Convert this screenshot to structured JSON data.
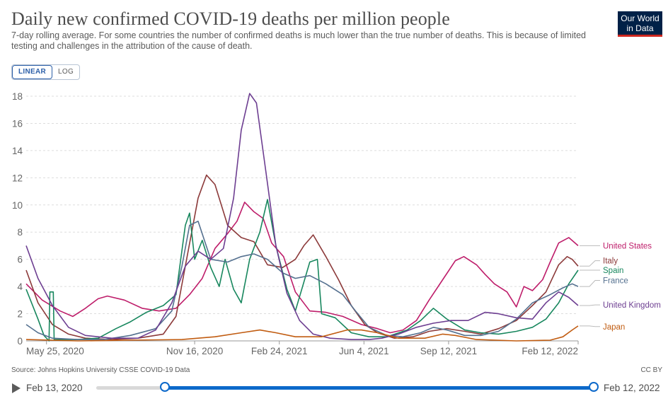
{
  "header": {
    "title": "Daily new confirmed COVID-19 deaths per million people",
    "subtitle": "7-day rolling average. For some countries the number of confirmed deaths is much lower than the true number of deaths. This is because of limited testing and challenges in the attribution of the cause of death.",
    "logo_line1": "Our World",
    "logo_line2": "in Data"
  },
  "controls": {
    "linear_label": "LINEAR",
    "log_label": "LOG"
  },
  "footer": {
    "source": "Source: Johns Hopkins University CSSE COVID-19 Data",
    "license": "CC BY"
  },
  "timeline": {
    "start_label": "Feb 13, 2020",
    "end_label": "Feb 12, 2022",
    "selected_start": 0.138,
    "selected_end": 1.0
  },
  "chart_data": {
    "type": "line",
    "x_type": "date",
    "xlim": [
      "2020-05-01",
      "2022-02-12"
    ],
    "ylim": [
      0,
      18
    ],
    "yticks": [
      0,
      2,
      4,
      6,
      8,
      10,
      12,
      14,
      16,
      18
    ],
    "xticks": [
      {
        "date": "2020-05-25",
        "label": "May 25, 2020"
      },
      {
        "date": "2020-11-16",
        "label": "Nov 16, 2020"
      },
      {
        "date": "2021-02-24",
        "label": "Feb 24, 2021"
      },
      {
        "date": "2021-06-04",
        "label": "Jun 4, 2021"
      },
      {
        "date": "2021-09-12",
        "label": "Sep 12, 2021"
      },
      {
        "date": "2022-02-12",
        "label": "Feb 12, 2022"
      }
    ],
    "grid": "horizontal-dashed",
    "legend": "right-end-labels",
    "series": [
      {
        "name": "United States",
        "color": "#be1d6a",
        "points": [
          [
            "2020-05-01",
            4.2
          ],
          [
            "2020-05-20",
            3.0
          ],
          [
            "2020-06-10",
            2.2
          ],
          [
            "2020-06-25",
            1.8
          ],
          [
            "2020-07-10",
            2.4
          ],
          [
            "2020-07-25",
            3.1
          ],
          [
            "2020-08-05",
            3.3
          ],
          [
            "2020-08-25",
            3.0
          ],
          [
            "2020-09-15",
            2.4
          ],
          [
            "2020-10-05",
            2.2
          ],
          [
            "2020-10-25",
            2.4
          ],
          [
            "2020-11-10",
            3.4
          ],
          [
            "2020-11-25",
            4.6
          ],
          [
            "2020-12-10",
            6.8
          ],
          [
            "2020-12-25",
            7.9
          ],
          [
            "2021-01-05",
            8.8
          ],
          [
            "2021-01-14",
            10.2
          ],
          [
            "2021-01-25",
            9.5
          ],
          [
            "2021-02-05",
            9.0
          ],
          [
            "2021-02-15",
            7.2
          ],
          [
            "2021-03-01",
            6.2
          ],
          [
            "2021-03-15",
            3.6
          ],
          [
            "2021-04-01",
            2.2
          ],
          [
            "2021-04-20",
            2.1
          ],
          [
            "2021-05-10",
            1.8
          ],
          [
            "2021-06-01",
            1.2
          ],
          [
            "2021-06-20",
            0.9
          ],
          [
            "2021-07-05",
            0.6
          ],
          [
            "2021-07-20",
            0.8
          ],
          [
            "2021-08-05",
            1.5
          ],
          [
            "2021-08-20",
            3.0
          ],
          [
            "2021-09-05",
            4.5
          ],
          [
            "2021-09-20",
            5.9
          ],
          [
            "2021-09-30",
            6.2
          ],
          [
            "2021-10-15",
            5.6
          ],
          [
            "2021-10-25",
            4.9
          ],
          [
            "2021-11-05",
            4.2
          ],
          [
            "2021-11-20",
            3.6
          ],
          [
            "2021-12-01",
            2.5
          ],
          [
            "2021-12-10",
            4.0
          ],
          [
            "2021-12-20",
            3.7
          ],
          [
            "2022-01-01",
            4.5
          ],
          [
            "2022-01-10",
            5.8
          ],
          [
            "2022-01-20",
            7.2
          ],
          [
            "2022-02-01",
            7.6
          ],
          [
            "2022-02-12",
            7.0
          ]
        ]
      },
      {
        "name": "Italy",
        "color": "#8c3a3a",
        "points": [
          [
            "2020-05-01",
            5.2
          ],
          [
            "2020-05-15",
            2.8
          ],
          [
            "2020-06-01",
            1.2
          ],
          [
            "2020-06-20",
            0.5
          ],
          [
            "2020-07-10",
            0.2
          ],
          [
            "2020-08-10",
            0.1
          ],
          [
            "2020-09-10",
            0.2
          ],
          [
            "2020-10-10",
            0.5
          ],
          [
            "2020-10-25",
            1.8
          ],
          [
            "2020-11-05",
            5.5
          ],
          [
            "2020-11-20",
            10.5
          ],
          [
            "2020-11-30",
            12.2
          ],
          [
            "2020-12-10",
            11.5
          ],
          [
            "2020-12-25",
            8.5
          ],
          [
            "2021-01-10",
            7.6
          ],
          [
            "2021-01-25",
            7.3
          ],
          [
            "2021-02-10",
            5.6
          ],
          [
            "2021-02-28",
            5.4
          ],
          [
            "2021-03-15",
            6.0
          ],
          [
            "2021-03-25",
            7.0
          ],
          [
            "2021-04-05",
            7.8
          ],
          [
            "2021-04-20",
            6.2
          ],
          [
            "2021-05-05",
            4.5
          ],
          [
            "2021-05-20",
            2.6
          ],
          [
            "2021-06-05",
            1.2
          ],
          [
            "2021-06-20",
            0.6
          ],
          [
            "2021-07-10",
            0.2
          ],
          [
            "2021-08-01",
            0.3
          ],
          [
            "2021-08-20",
            0.7
          ],
          [
            "2021-09-10",
            0.9
          ],
          [
            "2021-10-01",
            0.7
          ],
          [
            "2021-10-20",
            0.5
          ],
          [
            "2021-11-10",
            0.9
          ],
          [
            "2021-12-01",
            1.5
          ],
          [
            "2021-12-20",
            2.6
          ],
          [
            "2022-01-05",
            3.6
          ],
          [
            "2022-01-20",
            5.6
          ],
          [
            "2022-01-30",
            6.2
          ],
          [
            "2022-02-05",
            6.0
          ],
          [
            "2022-02-12",
            5.5
          ]
        ]
      },
      {
        "name": "Spain",
        "color": "#18875e",
        "points": [
          [
            "2020-05-01",
            3.8
          ],
          [
            "2020-05-15",
            1.6
          ],
          [
            "2020-05-22",
            0.4
          ],
          [
            "2020-05-28",
            0.0
          ],
          [
            "2020-05-29",
            3.6
          ],
          [
            "2020-06-02",
            3.6
          ],
          [
            "2020-06-03",
            0.1
          ],
          [
            "2020-07-01",
            0.1
          ],
          [
            "2020-07-25",
            0.2
          ],
          [
            "2020-08-15",
            0.9
          ],
          [
            "2020-09-01",
            1.4
          ],
          [
            "2020-09-20",
            2.1
          ],
          [
            "2020-10-10",
            2.6
          ],
          [
            "2020-10-25",
            3.4
          ],
          [
            "2020-11-05",
            8.5
          ],
          [
            "2020-11-10",
            9.4
          ],
          [
            "2020-11-16",
            6.0
          ],
          [
            "2020-11-25",
            7.4
          ],
          [
            "2020-12-05",
            5.4
          ],
          [
            "2020-12-15",
            4.0
          ],
          [
            "2020-12-22",
            6.0
          ],
          [
            "2021-01-01",
            3.8
          ],
          [
            "2021-01-10",
            2.8
          ],
          [
            "2021-01-20",
            6.0
          ],
          [
            "2021-02-01",
            8.0
          ],
          [
            "2021-02-10",
            10.4
          ],
          [
            "2021-02-20",
            7.0
          ],
          [
            "2021-03-05",
            3.8
          ],
          [
            "2021-03-15",
            2.2
          ],
          [
            "2021-04-01",
            5.8
          ],
          [
            "2021-04-10",
            6.0
          ],
          [
            "2021-04-15",
            2.0
          ],
          [
            "2021-05-01",
            1.7
          ],
          [
            "2021-05-20",
            0.6
          ],
          [
            "2021-06-10",
            0.3
          ],
          [
            "2021-07-01",
            0.3
          ],
          [
            "2021-07-25",
            0.8
          ],
          [
            "2021-08-10",
            1.5
          ],
          [
            "2021-08-25",
            2.4
          ],
          [
            "2021-09-10",
            1.6
          ],
          [
            "2021-10-01",
            0.8
          ],
          [
            "2021-10-20",
            0.6
          ],
          [
            "2021-11-10",
            0.5
          ],
          [
            "2021-12-01",
            0.7
          ],
          [
            "2021-12-20",
            1.0
          ],
          [
            "2022-01-05",
            1.6
          ],
          [
            "2022-01-20",
            2.8
          ],
          [
            "2022-02-01",
            4.2
          ],
          [
            "2022-02-12",
            5.2
          ]
        ]
      },
      {
        "name": "France",
        "color": "#54708f",
        "points": [
          [
            "2020-05-01",
            1.2
          ],
          [
            "2020-05-15",
            0.6
          ],
          [
            "2020-06-01",
            0.2
          ],
          [
            "2020-07-01",
            0.1
          ],
          [
            "2020-08-01",
            0.1
          ],
          [
            "2020-09-01",
            0.4
          ],
          [
            "2020-10-01",
            0.9
          ],
          [
            "2020-10-20",
            2.2
          ],
          [
            "2020-11-01",
            5.5
          ],
          [
            "2020-11-10",
            8.5
          ],
          [
            "2020-11-20",
            8.8
          ],
          [
            "2020-12-05",
            6.0
          ],
          [
            "2020-12-25",
            5.8
          ],
          [
            "2021-01-10",
            6.2
          ],
          [
            "2021-01-25",
            6.4
          ],
          [
            "2021-02-10",
            6.0
          ],
          [
            "2021-02-28",
            5.0
          ],
          [
            "2021-03-15",
            4.6
          ],
          [
            "2021-04-01",
            4.8
          ],
          [
            "2021-04-20",
            4.2
          ],
          [
            "2021-05-10",
            3.4
          ],
          [
            "2021-05-25",
            2.2
          ],
          [
            "2021-06-10",
            1.0
          ],
          [
            "2021-07-01",
            0.4
          ],
          [
            "2021-07-20",
            0.3
          ],
          [
            "2021-08-10",
            0.6
          ],
          [
            "2021-08-25",
            1.0
          ],
          [
            "2021-09-10",
            0.8
          ],
          [
            "2021-10-01",
            0.4
          ],
          [
            "2021-10-20",
            0.4
          ],
          [
            "2021-11-10",
            0.7
          ],
          [
            "2021-12-01",
            1.6
          ],
          [
            "2021-12-20",
            2.8
          ],
          [
            "2022-01-10",
            3.4
          ],
          [
            "2022-01-25",
            3.9
          ],
          [
            "2022-02-05",
            4.2
          ],
          [
            "2022-02-12",
            4.0
          ]
        ]
      },
      {
        "name": "United Kingdom",
        "color": "#6d3e91",
        "points": [
          [
            "2020-05-01",
            7.0
          ],
          [
            "2020-05-15",
            4.6
          ],
          [
            "2020-06-01",
            2.6
          ],
          [
            "2020-06-20",
            1.0
          ],
          [
            "2020-07-10",
            0.4
          ],
          [
            "2020-08-10",
            0.2
          ],
          [
            "2020-09-10",
            0.2
          ],
          [
            "2020-10-01",
            0.8
          ],
          [
            "2020-10-20",
            2.8
          ],
          [
            "2020-11-05",
            5.5
          ],
          [
            "2020-11-20",
            6.6
          ],
          [
            "2020-12-05",
            6.0
          ],
          [
            "2020-12-20",
            6.8
          ],
          [
            "2021-01-01",
            10.5
          ],
          [
            "2021-01-10",
            15.5
          ],
          [
            "2021-01-20",
            18.2
          ],
          [
            "2021-01-28",
            17.5
          ],
          [
            "2021-02-08",
            12.5
          ],
          [
            "2021-02-20",
            7.0
          ],
          [
            "2021-03-05",
            3.5
          ],
          [
            "2021-03-20",
            1.5
          ],
          [
            "2021-04-05",
            0.5
          ],
          [
            "2021-04-25",
            0.2
          ],
          [
            "2021-05-20",
            0.1
          ],
          [
            "2021-06-10",
            0.1
          ],
          [
            "2021-06-25",
            0.2
          ],
          [
            "2021-07-15",
            0.5
          ],
          [
            "2021-08-05",
            1.0
          ],
          [
            "2021-08-25",
            1.3
          ],
          [
            "2021-09-15",
            1.5
          ],
          [
            "2021-10-05",
            1.5
          ],
          [
            "2021-10-25",
            2.1
          ],
          [
            "2021-11-10",
            2.0
          ],
          [
            "2021-12-01",
            1.7
          ],
          [
            "2021-12-20",
            1.6
          ],
          [
            "2022-01-05",
            2.8
          ],
          [
            "2022-01-20",
            3.6
          ],
          [
            "2022-02-01",
            3.2
          ],
          [
            "2022-02-12",
            2.6
          ]
        ]
      },
      {
        "name": "Japan",
        "color": "#c15c11",
        "points": [
          [
            "2020-05-01",
            0.1
          ],
          [
            "2020-07-01",
            0.0
          ],
          [
            "2020-09-01",
            0.05
          ],
          [
            "2020-11-01",
            0.1
          ],
          [
            "2020-12-10",
            0.3
          ],
          [
            "2021-01-10",
            0.6
          ],
          [
            "2021-02-01",
            0.8
          ],
          [
            "2021-02-20",
            0.6
          ],
          [
            "2021-03-15",
            0.3
          ],
          [
            "2021-04-15",
            0.3
          ],
          [
            "2021-05-15",
            0.8
          ],
          [
            "2021-06-01",
            0.8
          ],
          [
            "2021-06-20",
            0.6
          ],
          [
            "2021-07-15",
            0.2
          ],
          [
            "2021-08-15",
            0.2
          ],
          [
            "2021-09-05",
            0.5
          ],
          [
            "2021-09-20",
            0.4
          ],
          [
            "2021-10-15",
            0.1
          ],
          [
            "2021-12-01",
            0.0
          ],
          [
            "2022-01-10",
            0.05
          ],
          [
            "2022-01-25",
            0.3
          ],
          [
            "2022-02-05",
            0.8
          ],
          [
            "2022-02-12",
            1.1
          ]
        ]
      }
    ],
    "end_labels": [
      {
        "name": "United States",
        "color": "#be1d6a",
        "label_y": 7.0
      },
      {
        "name": "Italy",
        "color": "#8c3a3a",
        "label_y": 5.9
      },
      {
        "name": "Spain",
        "color": "#18875e",
        "label_y": 5.2
      },
      {
        "name": "France",
        "color": "#54708f",
        "label_y": 4.45
      },
      {
        "name": "United Kingdom",
        "color": "#6d3e91",
        "label_y": 2.65
      },
      {
        "name": "Japan",
        "color": "#c15c11",
        "label_y": 1.05
      }
    ]
  }
}
